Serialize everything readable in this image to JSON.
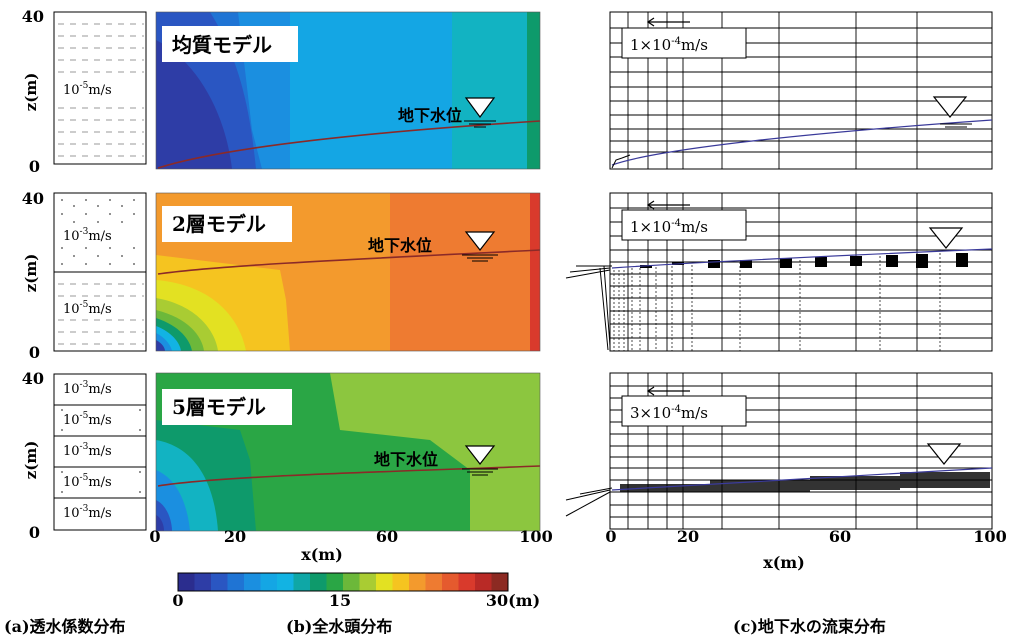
{
  "panel_titles": {
    "a": "(a)透水係数分布",
    "b": "(b)全水頭分布",
    "c": "(c)地下水の流束分布"
  },
  "axis": {
    "z_label": "z(m)",
    "x_label": "x(m)",
    "z_ticks": [
      "40",
      "0"
    ],
    "x_ticks": [
      "0",
      "20",
      "60",
      "100"
    ]
  },
  "models": [
    {
      "title": "均質モデル",
      "water_table_label": "地下水位",
      "layers": [
        {
          "value": "10",
          "exp": "-5",
          "unit": "m/s",
          "pattern": "dash"
        }
      ],
      "flux_scale": {
        "mantissa": "1×10",
        "exp": "-4",
        "unit": "m/s"
      }
    },
    {
      "title": "2層モデル",
      "water_table_label": "地下水位",
      "layers": [
        {
          "value": "10",
          "exp": "-3",
          "unit": "m/s",
          "pattern": "dot"
        },
        {
          "value": "10",
          "exp": "-5",
          "unit": "m/s",
          "pattern": "dash"
        }
      ],
      "flux_scale": {
        "mantissa": "1×10",
        "exp": "-4",
        "unit": "m/s"
      }
    },
    {
      "title": "5層モデル",
      "water_table_label": "地下水位",
      "layers": [
        {
          "value": "10",
          "exp": "-3",
          "unit": "m/s",
          "pattern": "dash"
        },
        {
          "value": "10",
          "exp": "-5",
          "unit": "m/s",
          "pattern": "dot"
        },
        {
          "value": "10",
          "exp": "-3",
          "unit": "m/s",
          "pattern": "dash"
        },
        {
          "value": "10",
          "exp": "-5",
          "unit": "m/s",
          "pattern": "dot"
        },
        {
          "value": "10",
          "exp": "-3",
          "unit": "m/s",
          "pattern": "dash"
        }
      ],
      "flux_scale": {
        "mantissa": "3×10",
        "exp": "-4",
        "unit": "m/s"
      }
    }
  ],
  "colorbar": {
    "labels": [
      "0",
      "15",
      "30(m)"
    ],
    "colors": [
      "#2b2d8e",
      "#2e3da6",
      "#2a56c2",
      "#1f74d4",
      "#1b8fe0",
      "#14a6e4",
      "#12b3e3",
      "#0fa7a6",
      "#0e9a6b",
      "#2aa645",
      "#6cb83a",
      "#a9cc33",
      "#e3e122",
      "#f5c420",
      "#f39a2d",
      "#ee7b31",
      "#e55a2e",
      "#d93a2c",
      "#b92a26",
      "#8c2a22"
    ]
  },
  "colors": {
    "water_table_b": "#8b2a28",
    "water_table_c": "#3a3a9a"
  }
}
